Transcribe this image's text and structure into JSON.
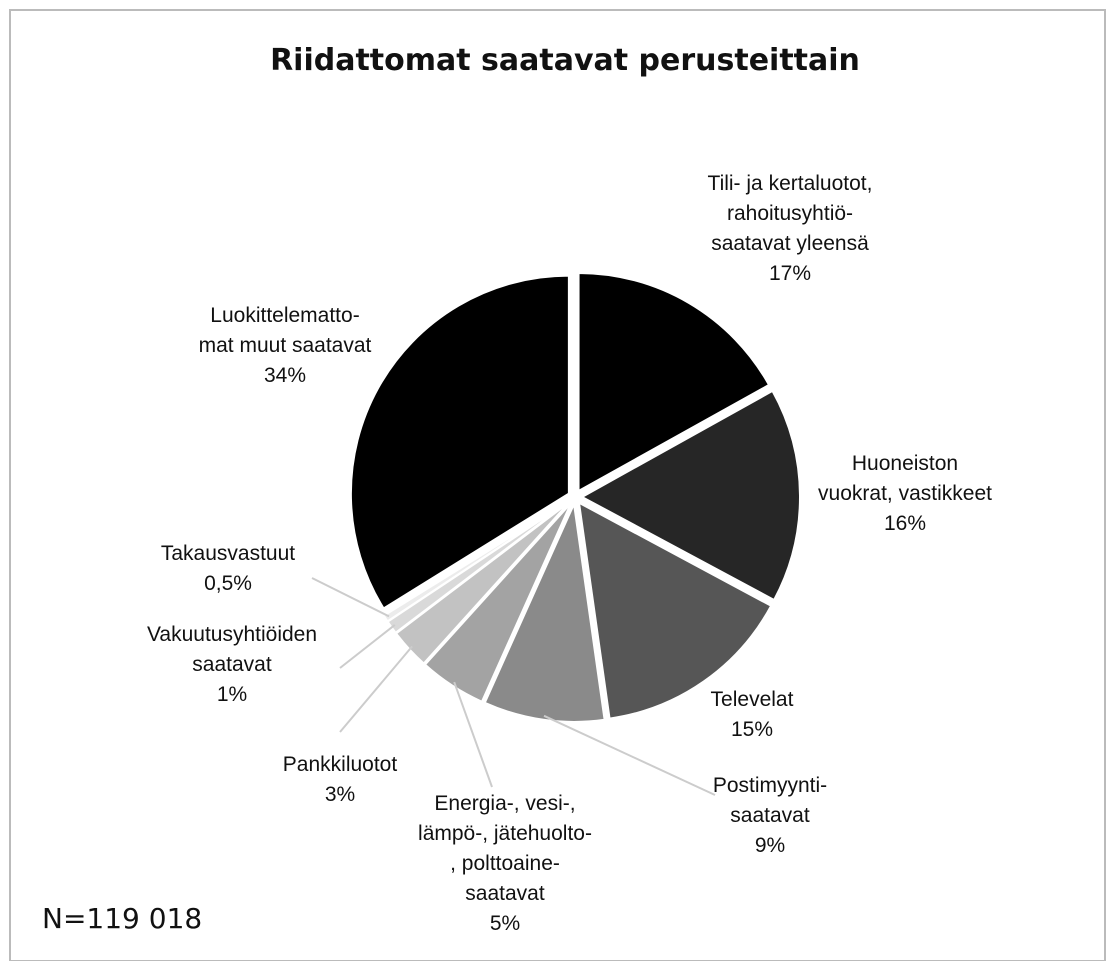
{
  "chart_data": {
    "type": "pie",
    "title": "Riidattomat saatavat perusteittain",
    "categories": [
      "Tili- ja kertaluotot,\nrahoitusyhtiö-\nsaatavat yleensä",
      "Huoneiston\nvuokrat, vastikkeet",
      "Televelat",
      "Postimyynti-\nsaatavat",
      "Energia-, vesi-,\nlämpö-, jätehuolto-\n, polttoaine-\nsaatavat",
      "Pankkiluotot",
      "Vakuutusyhtiöiden\nsaatavat",
      "Takausvastuut",
      "Luokittelematto-\nmat muut saatavat"
    ],
    "values": [
      17,
      16,
      15,
      9,
      5,
      3,
      1,
      0.5,
      34
    ],
    "value_labels": [
      "17%",
      "16%",
      "15%",
      "9%",
      "5%",
      "3%",
      "1%",
      "0,5%",
      "34%"
    ],
    "colors": [
      "#000000",
      "#262626",
      "#565656",
      "#8a8a8a",
      "#a3a3a3",
      "#c2c2c2",
      "#d9d9d9",
      "#ececec",
      "#000000"
    ],
    "annotation": "N=119 018"
  }
}
